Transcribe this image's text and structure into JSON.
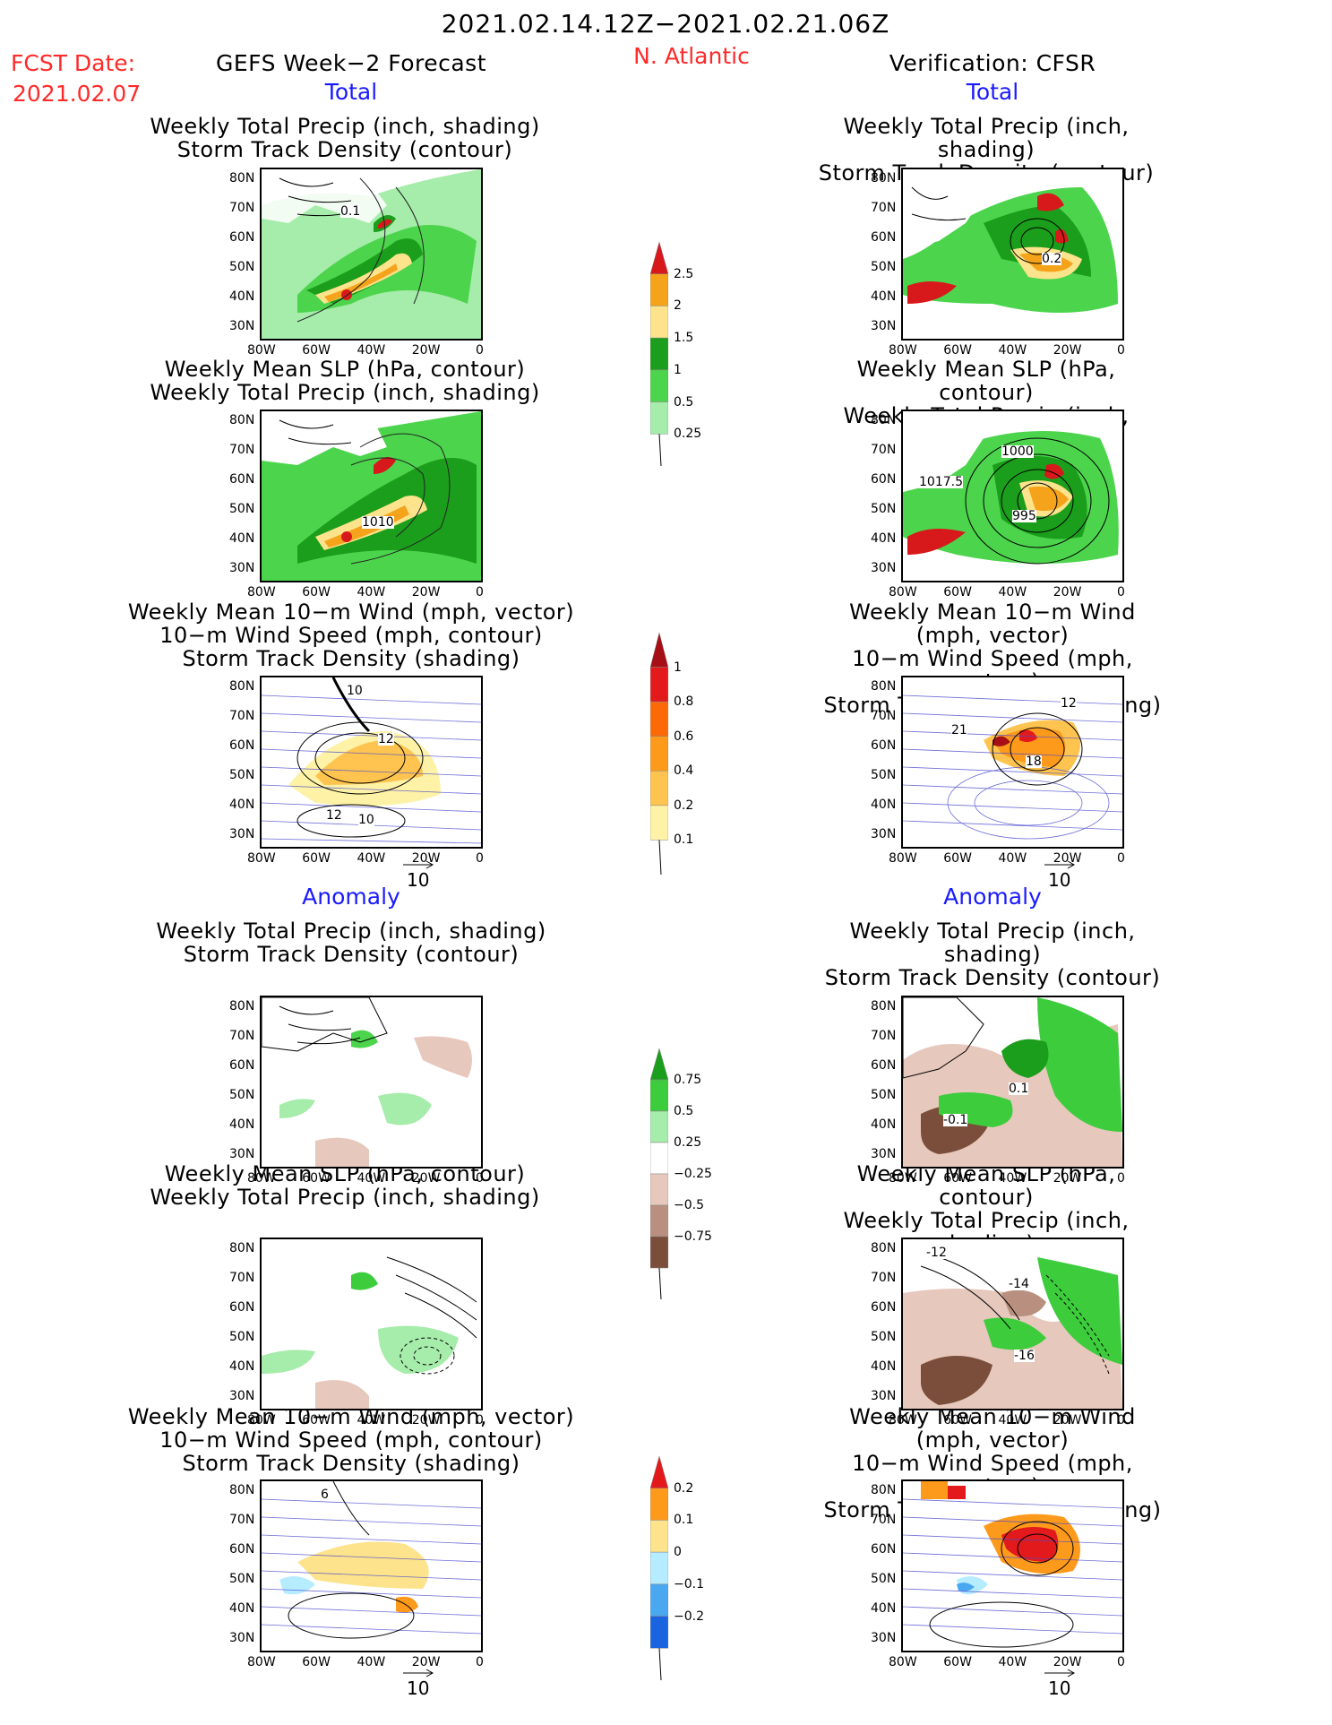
{
  "header": {
    "date_range": "2021.02.14.12Z−2021.02.21.06Z",
    "fcst_label": "FCST Date:",
    "fcst_date": "2021.02.07",
    "left_title": "GEFS Week−2 Forecast",
    "region": "N. Atlantic",
    "right_title": "Verification: CFSR"
  },
  "sections": {
    "total": "Total",
    "anomaly": "Anomaly"
  },
  "panels": [
    {
      "id": "p1",
      "l1": "Weekly Total Precip (inch, shading)",
      "l2": "Storm Track Density (contour)",
      "l3": ""
    },
    {
      "id": "p2",
      "l1": "Weekly Mean SLP (hPa, contour)",
      "l2": "Weekly Total Precip (inch, shading)",
      "l3": ""
    },
    {
      "id": "p3",
      "l1": "Weekly Mean 10−m Wind (mph, vector)",
      "l2": "10−m Wind Speed (mph, contour)",
      "l3": "Storm Track Density (shading)"
    }
  ],
  "axes": {
    "lat_ticks": [
      "80N",
      "70N",
      "60N",
      "50N",
      "40N",
      "30N"
    ],
    "lon_ticks": [
      "80W",
      "60W",
      "40W",
      "20W",
      "0"
    ]
  },
  "contour_labels": {
    "r1_left": "0.1",
    "r1_right": "0.2",
    "r2_left": "1010",
    "r2_right_a": "1000",
    "r2_right_b": "1017.5",
    "r2_right_c": "995",
    "r3_left_a": "10",
    "r3_left_b": "12",
    "r3_left_c": "12",
    "r3_left_d": "10",
    "r3_right_a": "12",
    "r3_right_b": "21",
    "r3_right_c": "18",
    "r4_right_a": "0.1",
    "r4_right_b": "-0.1",
    "r5_right_a": "-12",
    "r5_right_b": "-14",
    "r5_right_c": "-16",
    "r6_left_a": "6"
  },
  "colorbars": {
    "precip": {
      "labels": [
        "2.5",
        "2",
        "1.5",
        "1",
        "0.5",
        "0.25"
      ],
      "colors": [
        "#d7191c",
        "#f5a31a",
        "#fde38b",
        "#1b9e1b",
        "#4cd44c",
        "#a6ecaa"
      ]
    },
    "density": {
      "labels": [
        "1",
        "0.8",
        "0.6",
        "0.4",
        "0.2",
        "0.1"
      ],
      "colors": [
        "#a50f15",
        "#e31a1c",
        "#fc6a08",
        "#fd9a1c",
        "#fec44f",
        "#fef2a6"
      ]
    },
    "precip_anom": {
      "labels": [
        "0.75",
        "0.5",
        "0.25",
        "−0.25",
        "−0.5",
        "−0.75"
      ],
      "colors": [
        "#1b9e1b",
        "#3ccc3c",
        "#a6ecaa",
        "#ffffff",
        "#e6c8bc",
        "#b9907f",
        "#7a4e3a"
      ]
    },
    "density_anom": {
      "labels": [
        "0.2",
        "0.1",
        "0",
        "−0.1",
        "−0.2"
      ],
      "colors": [
        "#e31a1c",
        "#fd9a1c",
        "#fde38b",
        "#b6ecff",
        "#4aa8f0",
        "#1a64e0"
      ]
    }
  },
  "wind_ref": "10",
  "colors": {
    "red": "#ff2a2a",
    "blue": "#1a1aff"
  }
}
